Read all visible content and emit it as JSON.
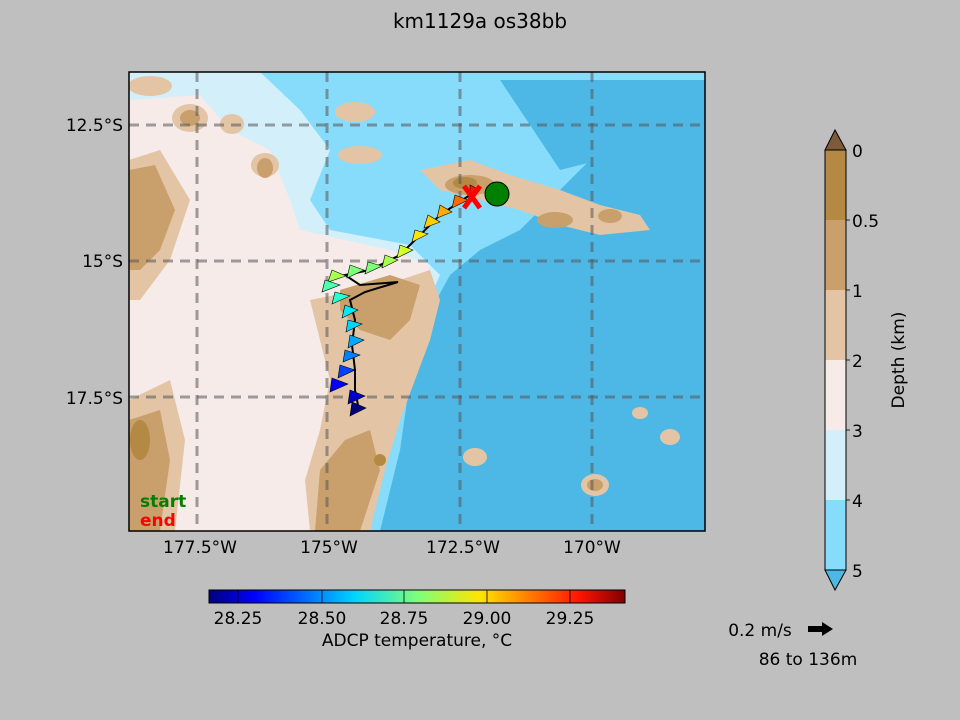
{
  "title": "km1129a os38bb",
  "map": {
    "lat_ticks": [
      "12.5°S",
      "15°S",
      "17.5°S"
    ],
    "lon_ticks": [
      "177.5°W",
      "175°W",
      "172.5°W",
      "170°W"
    ],
    "start_label": "start",
    "end_label": "end",
    "colors": {
      "start": "#008000",
      "end": "#ff0000",
      "deep_ocean": "#4db8e6",
      "mid_ocean": "#87dcfb",
      "shallow_ocean": "#d3effa",
      "shelf": "#f6ebe8",
      "land_low": "#e3c5a6",
      "land_mid": "#c99f6c",
      "land_high": "#b48943"
    }
  },
  "depth_colorbar": {
    "label": "Depth (km)",
    "ticks": [
      "0",
      "0.5",
      "1",
      "2",
      "3",
      "4",
      "5"
    ],
    "colors": [
      "#b48943",
      "#c99f6c",
      "#e3c5a6",
      "#f6ebe8",
      "#d3effa",
      "#87dcfb",
      "#4db8e6"
    ],
    "top_extend_color": "#7c5a3a",
    "bottom_extend_color": "#4db8e6"
  },
  "temperature_colorbar": {
    "label": "ADCP temperature, °C",
    "ticks": [
      "28.25",
      "28.50",
      "28.75",
      "29.00",
      "29.25"
    ],
    "min": 28.125,
    "max": 29.375
  },
  "vector_key": {
    "label": "0.2 m/s",
    "depth_range": "86 to 136m"
  }
}
